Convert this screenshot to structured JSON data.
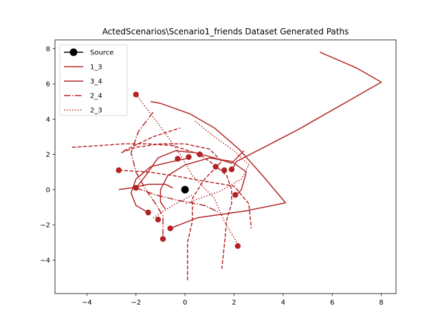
{
  "chart_data": {
    "type": "line",
    "title": "ActedScenarios\\Scenario1_friends Dataset Generated Paths",
    "xlabel": "",
    "ylabel": "",
    "xlim": [
      -5.3,
      8.6
    ],
    "ylim": [
      -5.9,
      8.5
    ],
    "xticks": [
      -4,
      -2,
      0,
      2,
      4,
      6,
      8
    ],
    "yticks": [
      -4,
      -2,
      0,
      2,
      4,
      6,
      8
    ],
    "grid": false,
    "legend_position": "upper-left",
    "colors": {
      "series": "#b22222",
      "source": "#000000"
    },
    "source": {
      "name": "Source",
      "x": 0,
      "y": 0
    },
    "series": [
      {
        "name": "1_3",
        "style": "solid"
      },
      {
        "name": "3_4",
        "style": "solid"
      },
      {
        "name": "2_4",
        "style": "dashdot"
      },
      {
        "name": "2_3",
        "style": "dotted"
      }
    ],
    "paths": [
      {
        "style": "solid",
        "points": [
          [
            -1.4,
            5.0
          ],
          [
            -1.0,
            4.9
          ],
          [
            0.2,
            4.3
          ],
          [
            1.2,
            3.5
          ],
          [
            2.2,
            2.3
          ],
          [
            3.1,
            0.9
          ],
          [
            4.1,
            -0.75
          ],
          [
            2.5,
            -1.2
          ],
          [
            0.5,
            -1.6
          ],
          [
            -0.6,
            -2.2
          ]
        ]
      },
      {
        "style": "solid",
        "points": [
          [
            5.5,
            7.8
          ],
          [
            7.0,
            6.9
          ],
          [
            8.0,
            6.1
          ],
          [
            4.6,
            3.4
          ],
          [
            2.1,
            1.6
          ],
          [
            1.9,
            1.1
          ]
        ]
      },
      {
        "style": "solid",
        "points": [
          [
            -1.5,
            -1.3
          ],
          [
            -2.0,
            -0.9
          ],
          [
            -2.2,
            -0.2
          ],
          [
            -2.0,
            0.6
          ],
          [
            -1.4,
            1.3
          ],
          [
            -0.5,
            1.6
          ],
          [
            0.2,
            1.8
          ]
        ]
      },
      {
        "style": "solid",
        "points": [
          [
            -0.8,
            -1.1
          ],
          [
            -1.0,
            -0.7
          ],
          [
            -1.0,
            0.0
          ],
          [
            -0.7,
            0.8
          ],
          [
            0.0,
            1.4
          ],
          [
            1.0,
            1.8
          ],
          [
            1.9,
            1.6
          ],
          [
            2.5,
            1.0
          ],
          [
            2.3,
            0.0
          ],
          [
            2.1,
            -0.3
          ]
        ]
      },
      {
        "style": "solid",
        "points": [
          [
            -2.0,
            0.1
          ],
          [
            -1.6,
            0.8
          ],
          [
            -1.1,
            1.8
          ],
          [
            -0.4,
            2.2
          ],
          [
            0.4,
            2.1
          ],
          [
            1.2,
            1.8
          ],
          [
            1.9,
            1.5
          ],
          [
            2.4,
            2.2
          ]
        ]
      },
      {
        "style": "solid",
        "points": [
          [
            -2.7,
            0.0
          ],
          [
            -2.2,
            0.1
          ],
          [
            -1.5,
            0.3
          ],
          [
            -0.8,
            0.3
          ],
          [
            -0.5,
            0.1
          ]
        ]
      },
      {
        "style": "dashed",
        "points": [
          [
            -4.6,
            2.4
          ],
          [
            -3.5,
            2.5
          ],
          [
            -2.5,
            2.6
          ],
          [
            -1.5,
            2.6
          ],
          [
            -0.5,
            2.5
          ],
          [
            0.6,
            2.0
          ],
          [
            1.2,
            1.4
          ],
          [
            1.7,
            0.8
          ],
          [
            1.9,
            0.0
          ],
          [
            1.9,
            -0.8
          ],
          [
            1.7,
            -1.7
          ],
          [
            1.6,
            -3.2
          ],
          [
            1.5,
            -4.5
          ]
        ]
      },
      {
        "style": "dashed",
        "points": [
          [
            -2.6,
            2.1
          ],
          [
            -2.0,
            2.4
          ],
          [
            -1.0,
            2.6
          ],
          [
            0.0,
            2.6
          ],
          [
            1.0,
            2.3
          ],
          [
            1.5,
            1.6
          ],
          [
            0.8,
            0.6
          ],
          [
            0.3,
            -0.5
          ],
          [
            0.3,
            -1.8
          ],
          [
            0.1,
            -3.0
          ],
          [
            0.1,
            -4.3
          ],
          [
            0.1,
            -5.2
          ]
        ]
      },
      {
        "style": "dashed",
        "points": [
          [
            -2.7,
            1.1
          ],
          [
            -1.5,
            1.0
          ],
          [
            -0.5,
            0.8
          ],
          [
            0.7,
            0.5
          ],
          [
            2.0,
            0.2
          ],
          [
            2.6,
            -0.8
          ],
          [
            2.7,
            -2.2
          ]
        ]
      },
      {
        "style": "dashed",
        "points": [
          [
            -2.5,
            2.2
          ],
          [
            -1.3,
            3.0
          ],
          [
            -0.2,
            3.5
          ]
        ]
      },
      {
        "style": "dashdot",
        "points": [
          [
            -1.3,
            4.4
          ],
          [
            -1.9,
            3.3
          ],
          [
            -2.2,
            2.1
          ],
          [
            -2.0,
            1.0
          ],
          [
            -1.6,
            0.0
          ],
          [
            -1.2,
            -0.8
          ],
          [
            -0.9,
            -1.5
          ],
          [
            -0.9,
            -2.8
          ]
        ]
      },
      {
        "style": "dashdot",
        "points": [
          [
            -2.0,
            0.1
          ],
          [
            -1.2,
            -0.3
          ],
          [
            -0.3,
            -0.6
          ],
          [
            0.8,
            -0.9
          ],
          [
            1.4,
            -1.3
          ]
        ]
      },
      {
        "style": "dotted",
        "points": [
          [
            -2.0,
            5.4
          ],
          [
            -1.4,
            4.3
          ],
          [
            -0.8,
            3.2
          ],
          [
            -0.2,
            2.0
          ],
          [
            0.3,
            0.8
          ],
          [
            1.2,
            -0.5
          ],
          [
            1.6,
            -1.8
          ],
          [
            2.2,
            -3.2
          ]
        ]
      },
      {
        "style": "dotted",
        "points": [
          [
            0.4,
            3.9
          ],
          [
            1.2,
            3.0
          ],
          [
            2.0,
            2.2
          ],
          [
            2.6,
            1.4
          ],
          [
            2.3,
            0.6
          ],
          [
            1.4,
            -0.1
          ],
          [
            0.0,
            -0.8
          ]
        ]
      },
      {
        "style": "dotted",
        "points": [
          [
            -1.3,
            -1.6
          ],
          [
            -0.5,
            -0.9
          ],
          [
            0.3,
            -0.3
          ]
        ]
      }
    ],
    "endpoints": [
      [
        -2.0,
        5.4
      ],
      [
        -2.7,
        1.1
      ],
      [
        -2.0,
        0.1
      ],
      [
        -1.5,
        -1.3
      ],
      [
        -1.1,
        -1.7
      ],
      [
        -0.9,
        -2.8
      ],
      [
        -0.6,
        -2.2
      ],
      [
        -0.3,
        1.75
      ],
      [
        0.15,
        1.85
      ],
      [
        0.6,
        2.0
      ],
      [
        1.25,
        1.3
      ],
      [
        1.6,
        1.1
      ],
      [
        1.9,
        1.15
      ],
      [
        2.05,
        -0.3
      ],
      [
        2.15,
        -3.2
      ]
    ]
  }
}
